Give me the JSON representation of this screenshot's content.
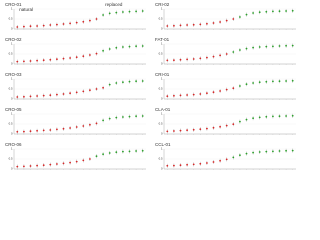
{
  "chart_data": [
    {
      "type": "scatter",
      "title": "CRO-01",
      "ylim": [
        0,
        1
      ],
      "yticks": [
        0,
        0.5,
        1
      ],
      "series": [
        {
          "name": "natural",
          "color": "#d62728",
          "values": [
            0.1,
            0.12,
            0.14,
            0.15,
            0.17,
            0.2,
            0.22,
            0.25,
            0.28,
            0.32,
            0.36,
            0.42,
            0.5,
            null,
            null,
            null,
            null,
            null,
            null,
            null
          ]
        },
        {
          "name": "replaced",
          "color": "#2ca02c",
          "values": [
            null,
            null,
            null,
            null,
            null,
            null,
            null,
            null,
            null,
            null,
            null,
            null,
            null,
            0.7,
            0.78,
            0.82,
            0.85,
            0.87,
            0.88,
            0.9
          ]
        }
      ]
    },
    {
      "type": "scatter",
      "title": "CRI-02",
      "ylim": [
        0,
        1
      ],
      "yticks": [
        0,
        0.5,
        1
      ],
      "series": [
        {
          "color": "#d62728",
          "values": [
            0.15,
            0.16,
            0.18,
            0.2,
            0.21,
            0.23,
            0.26,
            0.3,
            0.35,
            0.42,
            0.5,
            null,
            null,
            null,
            null,
            null,
            null,
            null,
            null,
            null
          ]
        },
        {
          "color": "#2ca02c",
          "values": [
            null,
            null,
            null,
            null,
            null,
            null,
            null,
            null,
            null,
            null,
            null,
            0.6,
            0.72,
            0.8,
            0.84,
            0.86,
            0.88,
            0.89,
            0.9,
            0.91
          ]
        }
      ]
    },
    {
      "type": "scatter",
      "title": "CRO-02",
      "ylim": [
        0,
        1
      ],
      "yticks": [
        0,
        0.5,
        1
      ],
      "series": [
        {
          "color": "#d62728",
          "values": [
            0.12,
            0.13,
            0.15,
            0.17,
            0.19,
            0.21,
            0.24,
            0.27,
            0.3,
            0.34,
            0.39,
            0.45,
            0.52,
            null,
            null,
            null,
            null,
            null,
            null,
            null
          ]
        },
        {
          "color": "#2ca02c",
          "values": [
            null,
            null,
            null,
            null,
            null,
            null,
            null,
            null,
            null,
            null,
            null,
            null,
            null,
            0.66,
            0.75,
            0.81,
            0.85,
            0.87,
            0.89,
            0.9
          ]
        }
      ]
    },
    {
      "type": "scatter",
      "title": "FAT-01",
      "ylim": [
        0,
        1
      ],
      "yticks": [
        0,
        0.5,
        1
      ],
      "series": [
        {
          "color": "#d62728",
          "values": [
            0.18,
            0.19,
            0.21,
            0.23,
            0.25,
            0.28,
            0.32,
            0.37,
            0.43,
            0.5,
            null,
            null,
            null,
            null,
            null,
            null,
            null,
            null,
            null,
            null
          ]
        },
        {
          "color": "#2ca02c",
          "values": [
            null,
            null,
            null,
            null,
            null,
            null,
            null,
            null,
            null,
            null,
            0.6,
            0.7,
            0.77,
            0.82,
            0.85,
            0.87,
            0.88,
            0.9,
            0.91,
            0.92
          ]
        }
      ]
    },
    {
      "type": "scatter",
      "title": "CRO-03",
      "ylim": [
        0,
        1
      ],
      "yticks": [
        0,
        0.5,
        1
      ],
      "series": [
        {
          "color": "#d62728",
          "values": [
            0.1,
            0.11,
            0.13,
            0.15,
            0.17,
            0.19,
            0.22,
            0.25,
            0.29,
            0.33,
            0.38,
            0.44,
            0.5,
            0.56,
            null,
            null,
            null,
            null,
            null,
            null
          ]
        },
        {
          "color": "#2ca02c",
          "values": [
            null,
            null,
            null,
            null,
            null,
            null,
            null,
            null,
            null,
            null,
            null,
            null,
            null,
            null,
            0.72,
            0.8,
            0.84,
            0.87,
            0.89,
            0.9
          ]
        }
      ]
    },
    {
      "type": "scatter",
      "title": "CRI-01",
      "ylim": [
        0,
        1
      ],
      "yticks": [
        0,
        0.5,
        1
      ],
      "series": [
        {
          "color": "#d62728",
          "values": [
            0.14,
            0.16,
            0.18,
            0.2,
            0.22,
            0.25,
            0.29,
            0.34,
            0.4,
            0.47,
            0.54,
            null,
            null,
            null,
            null,
            null,
            null,
            null,
            null,
            null
          ]
        },
        {
          "color": "#2ca02c",
          "values": [
            null,
            null,
            null,
            null,
            null,
            null,
            null,
            null,
            null,
            null,
            null,
            0.65,
            0.74,
            0.8,
            0.84,
            0.86,
            0.88,
            0.89,
            0.9,
            0.91
          ]
        }
      ]
    },
    {
      "type": "scatter",
      "title": "CRO-05",
      "ylim": [
        0,
        1
      ],
      "yticks": [
        0,
        0.5,
        1
      ],
      "series": [
        {
          "color": "#d62728",
          "values": [
            0.11,
            0.12,
            0.14,
            0.16,
            0.18,
            0.2,
            0.23,
            0.26,
            0.3,
            0.35,
            0.4,
            0.46,
            0.53,
            null,
            null,
            null,
            null,
            null,
            null,
            null
          ]
        },
        {
          "color": "#2ca02c",
          "values": [
            null,
            null,
            null,
            null,
            null,
            null,
            null,
            null,
            null,
            null,
            null,
            null,
            null,
            0.68,
            0.77,
            0.82,
            0.85,
            0.87,
            0.89,
            0.9
          ]
        }
      ]
    },
    {
      "type": "scatter",
      "title": "CLA-01",
      "ylim": [
        0,
        1
      ],
      "yticks": [
        0,
        0.5,
        1
      ],
      "series": [
        {
          "color": "#d62728",
          "values": [
            0.13,
            0.15,
            0.17,
            0.19,
            0.21,
            0.24,
            0.27,
            0.31,
            0.36,
            0.42,
            0.49,
            null,
            null,
            null,
            null,
            null,
            null,
            null,
            null,
            null
          ]
        },
        {
          "color": "#2ca02c",
          "values": [
            null,
            null,
            null,
            null,
            null,
            null,
            null,
            null,
            null,
            null,
            null,
            0.62,
            0.72,
            0.79,
            0.83,
            0.86,
            0.88,
            0.89,
            0.9,
            0.91
          ]
        }
      ]
    },
    {
      "type": "scatter",
      "title": "CRO-06",
      "ylim": [
        0,
        1
      ],
      "yticks": [
        0,
        0.5,
        1
      ],
      "series": [
        {
          "color": "#d62728",
          "values": [
            0.12,
            0.13,
            0.15,
            0.17,
            0.19,
            0.22,
            0.25,
            0.28,
            0.32,
            0.37,
            0.43,
            0.5,
            null,
            null,
            null,
            null,
            null,
            null,
            null,
            null
          ]
        },
        {
          "color": "#2ca02c",
          "values": [
            null,
            null,
            null,
            null,
            null,
            null,
            null,
            null,
            null,
            null,
            null,
            null,
            0.64,
            0.74,
            0.8,
            0.84,
            0.87,
            0.88,
            0.9,
            0.91
          ]
        }
      ]
    },
    {
      "type": "scatter",
      "title": "CCL-01",
      "ylim": [
        0,
        1
      ],
      "yticks": [
        0,
        0.5,
        1
      ],
      "series": [
        {
          "color": "#d62728",
          "values": [
            0.16,
            0.17,
            0.19,
            0.21,
            0.23,
            0.26,
            0.3,
            0.35,
            0.41,
            0.48,
            null,
            null,
            null,
            null,
            null,
            null,
            null,
            null,
            null,
            null
          ]
        },
        {
          "color": "#2ca02c",
          "values": [
            null,
            null,
            null,
            null,
            null,
            null,
            null,
            null,
            null,
            null,
            0.58,
            0.69,
            0.77,
            0.82,
            0.85,
            0.87,
            0.88,
            0.9,
            0.91,
            0.92
          ]
        }
      ]
    }
  ]
}
